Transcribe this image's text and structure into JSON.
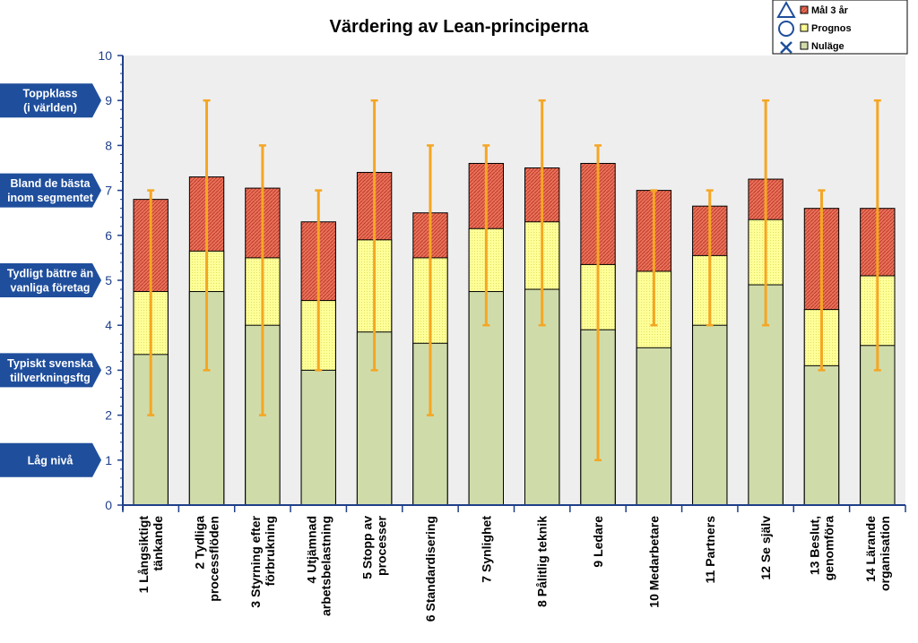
{
  "chart_data": {
    "type": "bar",
    "title": "Värdering av Lean-principerna",
    "ylim": [
      0,
      10
    ],
    "yticks": [
      0,
      1,
      2,
      3,
      4,
      5,
      6,
      7,
      8,
      9,
      10
    ],
    "grid": false,
    "legend_position": "top-right",
    "categories": [
      [
        "1 Långsiktigt",
        "tänkande"
      ],
      [
        "2 Tydliga",
        "processflöden"
      ],
      [
        "3 Styrning efter",
        "förbrukning"
      ],
      [
        "4 Utjämnad",
        "arbetsbelastning"
      ],
      [
        "5 Stopp av",
        "processer"
      ],
      [
        "6 Standardisering"
      ],
      [
        "7 Synlighet"
      ],
      [
        "8 Pålitlig teknik"
      ],
      [
        "9 Ledare"
      ],
      [
        "10 Medarbetare"
      ],
      [
        "11 Partners"
      ],
      [
        "12 Se själv"
      ],
      [
        "13 Beslut,",
        "genomföra"
      ],
      [
        "14 Lärande",
        "organisation"
      ]
    ],
    "series": [
      {
        "name": "Mål 3 år",
        "color": "#e8735a",
        "marker": "triangle-icon",
        "values": [
          6.8,
          7.3,
          7.05,
          6.3,
          7.4,
          6.5,
          7.6,
          7.5,
          7.6,
          7.0,
          6.65,
          7.25,
          6.6,
          6.6
        ]
      },
      {
        "name": "Prognos",
        "color": "#ffff99",
        "marker": "circle-icon",
        "values": [
          4.75,
          5.65,
          5.5,
          4.55,
          5.9,
          5.5,
          6.15,
          6.3,
          5.35,
          5.2,
          5.55,
          6.35,
          4.35,
          5.1
        ]
      },
      {
        "name": "Nuläge",
        "color": "#cfdcaa",
        "marker": "x-icon",
        "values": [
          3.35,
          4.75,
          4.0,
          3.0,
          3.85,
          3.6,
          4.75,
          4.8,
          3.9,
          3.5,
          4.0,
          4.9,
          3.1,
          3.55
        ]
      }
    ],
    "ranges": [
      [
        2,
        7
      ],
      [
        3,
        9
      ],
      [
        2,
        8
      ],
      [
        3,
        7
      ],
      [
        3,
        9
      ],
      [
        2,
        8
      ],
      [
        4,
        8
      ],
      [
        4,
        9
      ],
      [
        1,
        8
      ],
      [
        4,
        7
      ],
      [
        4,
        7
      ],
      [
        4,
        9
      ],
      [
        3,
        7
      ],
      [
        3,
        9
      ]
    ],
    "range_color": "#f5a623",
    "levels": [
      {
        "value": 9,
        "lines": [
          "Toppklass",
          "(i världen)"
        ]
      },
      {
        "value": 7,
        "lines": [
          "Bland  de bästa",
          "inom segmentet"
        ]
      },
      {
        "value": 5,
        "lines": [
          "Tydligt bättre än",
          "vanliga företag"
        ]
      },
      {
        "value": 3,
        "lines": [
          "Typiskt svenska",
          "tillverkningsftg"
        ]
      },
      {
        "value": 1,
        "lines": [
          "Låg nivå"
        ]
      }
    ],
    "level_color": "#1f4e9c"
  }
}
